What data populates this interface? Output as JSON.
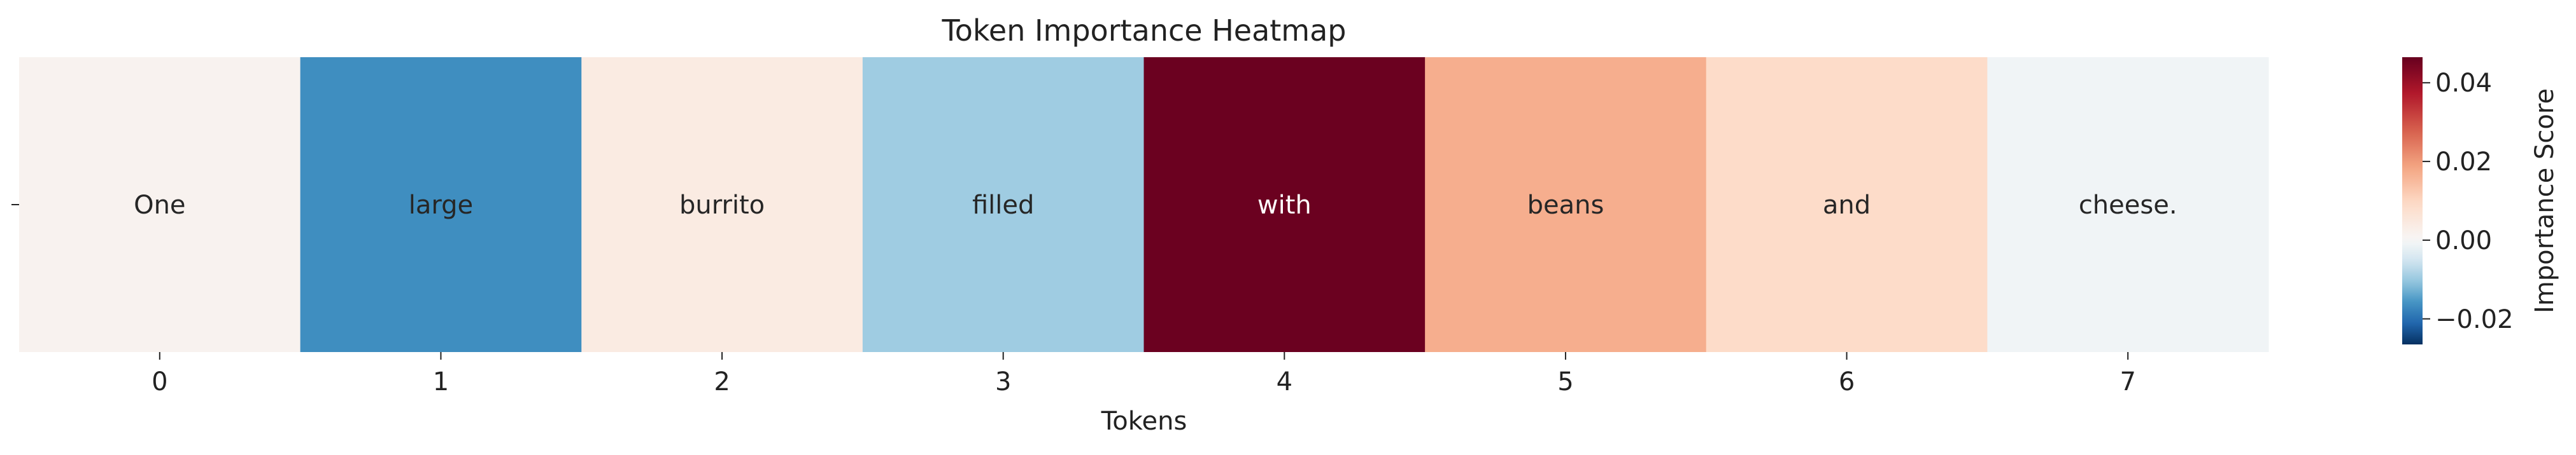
{
  "chart_data": {
    "type": "heatmap",
    "title": "Token Importance Heatmap",
    "xlabel": "Tokens",
    "ylabel": "",
    "x": [
      0,
      1,
      2,
      3,
      4,
      5,
      6,
      7
    ],
    "x_tick_labels": [
      "0",
      "1",
      "2",
      "3",
      "4",
      "5",
      "6",
      "7"
    ],
    "y_tick_labels": [
      ""
    ],
    "tokens": [
      "One",
      "large",
      "burrito",
      "filled",
      "with",
      "beans",
      "and",
      "cheese."
    ],
    "values": [
      0.0015,
      -0.0165,
      0.004,
      -0.0095,
      0.046,
      0.017,
      0.009,
      -0.001
    ],
    "colorbar": {
      "label": "Importance Score",
      "vmin": -0.0265,
      "vmax": 0.0465,
      "center": 0.0,
      "ticks": [
        -0.02,
        0.0,
        0.02,
        0.04
      ],
      "tick_labels": [
        "−0.02",
        "0.00",
        "0.02",
        "0.04"
      ]
    },
    "colormap": "RdBu_r",
    "colormap_stops": [
      "#053061",
      "#2166ac",
      "#4393c3",
      "#92c5de",
      "#d1e5f0",
      "#f7f7f7",
      "#fddbc7",
      "#f4a582",
      "#d6604d",
      "#b2182b",
      "#67001f"
    ]
  }
}
